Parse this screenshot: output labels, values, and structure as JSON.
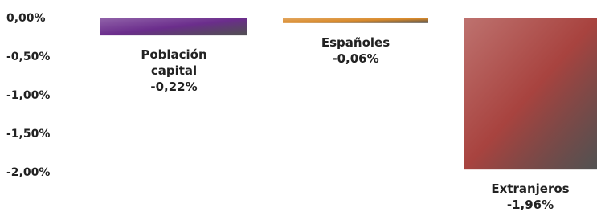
{
  "chart_data": {
    "type": "bar",
    "categories": [
      "Población capital",
      "Españoles",
      "Extranjeros"
    ],
    "values": [
      -0.22,
      -0.06,
      -1.96
    ],
    "value_labels": [
      "-0,22%",
      "-0,06%",
      "-1,96%"
    ],
    "colors": [
      "#6b2d8c",
      "#d98a2b",
      "#a8433f"
    ],
    "ylim": [
      -2,
      0
    ],
    "yticks": [
      {
        "value": 0,
        "label": "0,00%"
      },
      {
        "value": -0.5,
        "label": "-0,50%"
      },
      {
        "value": -1,
        "label": "-1,00%"
      },
      {
        "value": -1.5,
        "label": "-1,50%"
      },
      {
        "value": -2,
        "label": "-2,00%"
      }
    ],
    "grid": false
  }
}
